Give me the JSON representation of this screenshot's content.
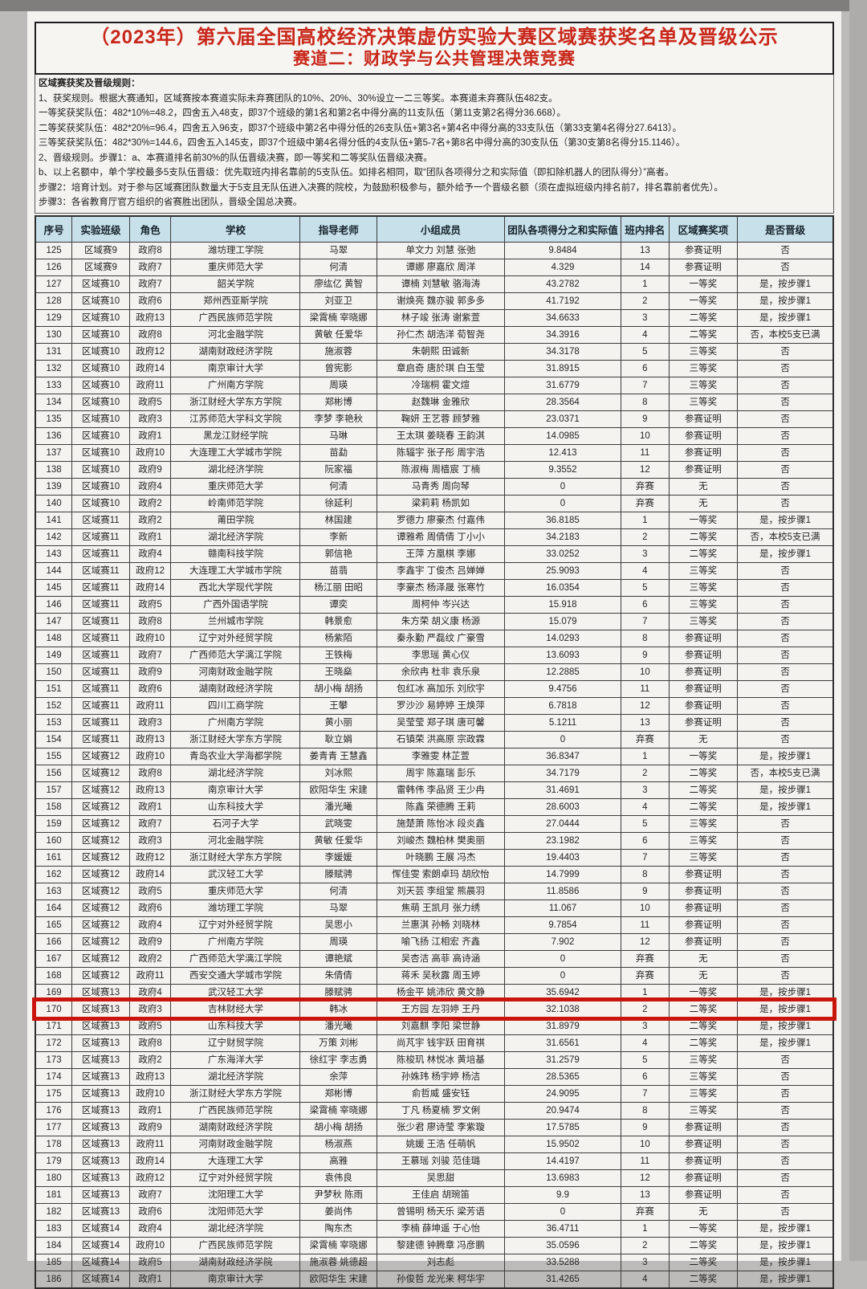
{
  "colors": {
    "title_red": "#c8271a",
    "header_bg": "#c7e0ea",
    "highlight_red": "#c9150c"
  },
  "title": {
    "line1": "（2023年）第六届全国高校经济决策虚仿实验大赛区域赛获奖名单及晋级公示",
    "line2": "赛道二：财政学与公共管理决策竞赛"
  },
  "rules": [
    "区域赛获奖及晋级规则：",
    "1、获奖规则。根据大赛通知，区域赛按本赛道实际未弃赛团队的10%、20%、30%设立一二三等奖。本赛道未弃赛队伍482支。",
    "一等奖获奖队伍：482*10%=48.2，四舍五入48支，即37个班级的第1名和第2名中得分高的11支队伍（第11支第2名得分36.668）。",
    "二等奖获奖队伍：482*20%=96.4，四舍五入96支，即37个班级中第2名中得分低的26支队伍+第3名+第4名中得分高的33支队伍（第33支第4名得分27.6413）。",
    "三等奖获奖队伍：482*30%=144.6，四舍五入145支，即37个班级中第4名得分低的4支队伍+第5-7名+第8名中得分高的30支队伍（第30支第8名得分15.1146）。",
    "2、晋级规则。步骤1：a、本赛道排名前30%的队伍晋级决赛，即一等奖和二等奖队伍晋级决赛。",
    "b、以上名额中，单个学校最多5支队伍晋级：优先取班内排名靠前的5支队伍。如排名相同，取“团队各项得分之和实际值（即扣除机器人的团队得分）”高者。",
    "步骤2：培育计划。对于参与区域赛团队数量大于5支且无队伍进入决赛的院校，为鼓励积极参与，额外给予一个晋级名额（须在虚拟班级内排名前7，排名靠前者优先）。",
    "步骤3：各省教育厅官方组织的省赛胜出团队，晋级全国总决赛。"
  ],
  "table": {
    "headers": [
      "序号",
      "实验班级",
      "角色",
      "学校",
      "指导老师",
      "小组成员",
      "团队各项得分之和实际值",
      "班内排名",
      "区域赛奖项",
      "是否晋级"
    ],
    "highlighted_seq": "170",
    "rows": [
      [
        "125",
        "区域赛9",
        "政府8",
        "潍坊理工学院",
        "马翠",
        "单文力 刘慧 张弛",
        "9.8484",
        "13",
        "参赛证明",
        "否"
      ],
      [
        "126",
        "区域赛9",
        "政府7",
        "重庆师范大学",
        "何清",
        "谭娜 廖嘉欣 周洋",
        "4.329",
        "14",
        "参赛证明",
        "否"
      ],
      [
        "127",
        "区域赛10",
        "政府7",
        "韶关学院",
        "廖纮亿 黄智",
        "谭楠 刘慧敏 骆海涛",
        "43.2782",
        "1",
        "一等奖",
        "是，按步骤1"
      ],
      [
        "128",
        "区域赛10",
        "政府6",
        "郑州西亚斯学院",
        "刘亚卫",
        "谢焕亮 魏亦骏 郭多多",
        "41.7192",
        "2",
        "一等奖",
        "是，按步骤1"
      ],
      [
        "129",
        "区域赛10",
        "政府13",
        "广西民族师范学院",
        "梁霄楠 宰晓娜",
        "林子竣 张涛 谢紫萱",
        "34.6633",
        "3",
        "二等奖",
        "是，按步骤1"
      ],
      [
        "130",
        "区域赛10",
        "政府8",
        "河北金融学院",
        "黄敏 任爱华",
        "孙仁杰 胡浩洋 荀智尧",
        "34.3916",
        "4",
        "二等奖",
        "否，本校5支已满"
      ],
      [
        "131",
        "区域赛10",
        "政府12",
        "湖南财政经济学院",
        "施淑蓉",
        "朱朝熙 田诚新",
        "34.3178",
        "5",
        "三等奖",
        "否"
      ],
      [
        "132",
        "区域赛10",
        "政府14",
        "南京审计大学",
        "曾宪影",
        "章启奇 唐於琪 白玉莹",
        "31.8915",
        "6",
        "三等奖",
        "否"
      ],
      [
        "133",
        "区域赛10",
        "政府11",
        "广州南方学院",
        "周瑛",
        "冷瑞桐 霍文煊",
        "31.6779",
        "7",
        "三等奖",
        "否"
      ],
      [
        "134",
        "区域赛10",
        "政府5",
        "浙江财经大学东方学院",
        "郑彬博",
        "赵魏琳 金雅欣",
        "28.3564",
        "8",
        "三等奖",
        "否"
      ],
      [
        "135",
        "区域赛10",
        "政府3",
        "江苏师范大学科文学院",
        "李梦 李艳秋",
        "鞠妍 王艺蓉 顾梦雅",
        "23.0371",
        "9",
        "参赛证明",
        "否"
      ],
      [
        "136",
        "区域赛10",
        "政府1",
        "黑龙江财经学院",
        "马琳",
        "王太琪 姜晓春 王韵淇",
        "14.0985",
        "10",
        "参赛证明",
        "否"
      ],
      [
        "137",
        "区域赛10",
        "政府10",
        "大连理工大学城市学院",
        "苗勐",
        "陈辐宇 张子彤 周宇浩",
        "12.413",
        "11",
        "参赛证明",
        "否"
      ],
      [
        "138",
        "区域赛10",
        "政府9",
        "湖北经济学院",
        "阮家福",
        "陈淑梅 周樯宸 丁楠",
        "9.3552",
        "12",
        "参赛证明",
        "否"
      ],
      [
        "139",
        "区域赛10",
        "政府4",
        "重庆师范大学",
        "何清",
        "马青秀 周向琴",
        "0",
        "弃赛",
        "无",
        "否"
      ],
      [
        "140",
        "区域赛10",
        "政府2",
        "岭南师范学院",
        "徐延利",
        "梁莉莉 杨凯如",
        "0",
        "弃赛",
        "无",
        "否"
      ],
      [
        "141",
        "区域赛11",
        "政府2",
        "莆田学院",
        "林国建",
        "罗德力 廖豪杰 付嘉伟",
        "36.8185",
        "1",
        "一等奖",
        "是，按步骤1"
      ],
      [
        "142",
        "区域赛11",
        "政府1",
        "湖北经济学院",
        "李新",
        "谭雅希 周倩倩 丁小小",
        "34.2183",
        "2",
        "二等奖",
        "否，本校5支已满"
      ],
      [
        "143",
        "区域赛11",
        "政府4",
        "赣南科技学院",
        "郭信艳",
        "王萍 方凰棋 李娜",
        "33.0252",
        "3",
        "二等奖",
        "是，按步骤1"
      ],
      [
        "144",
        "区域赛11",
        "政府12",
        "大连理工大学城市学院",
        "苗翡",
        "李鑫宇 丁俊杰 吕婵婵",
        "25.9093",
        "4",
        "三等奖",
        "否"
      ],
      [
        "145",
        "区域赛11",
        "政府14",
        "西北大学现代学院",
        "杨江丽 田昭",
        "李豪杰 杨泽晟 张寒竹",
        "16.0354",
        "5",
        "三等奖",
        "否"
      ],
      [
        "146",
        "区域赛11",
        "政府5",
        "广西外国语学院",
        "谭奕",
        "周柯仲 岑兴达",
        "15.918",
        "6",
        "三等奖",
        "否"
      ],
      [
        "147",
        "区域赛11",
        "政府8",
        "兰州城市学院",
        "韩景愈",
        "朱方荣 胡义康 杨源",
        "15.079",
        "7",
        "三等奖",
        "否"
      ],
      [
        "148",
        "区域赛11",
        "政府10",
        "辽宁对外经贸学院",
        "杨紫陌",
        "秦永勤 严磊纹 广豪雪",
        "14.0293",
        "8",
        "参赛证明",
        "否"
      ],
      [
        "149",
        "区域赛11",
        "政府7",
        "广西师范大学漓江学院",
        "王铁梅",
        "李思瑶 黄心仪",
        "13.6093",
        "9",
        "参赛证明",
        "否"
      ],
      [
        "150",
        "区域赛11",
        "政府9",
        "河南财政金融学院",
        "王晓燊",
        "余欣冉 杜非 袁乐泉",
        "12.2885",
        "10",
        "参赛证明",
        "否"
      ],
      [
        "151",
        "区域赛11",
        "政府6",
        "湖南财政经济学院",
        "胡小梅 胡扬",
        "包红冰 高加乐 刘欣宇",
        "9.4756",
        "11",
        "参赛证明",
        "否"
      ],
      [
        "152",
        "区域赛11",
        "政府11",
        "四川工商学院",
        "王攀",
        "罗沙沙 易婷婷 王焕萍",
        "6.7818",
        "12",
        "参赛证明",
        "否"
      ],
      [
        "153",
        "区域赛11",
        "政府3",
        "广州南方学院",
        "黄小丽",
        "吴莹莹 郑子琪 唐可馨",
        "5.1211",
        "13",
        "参赛证明",
        "否"
      ],
      [
        "154",
        "区域赛11",
        "政府13",
        "浙江财经大学东方学院",
        "耿立娟",
        "石镇荣 洪高原 宗政霖",
        "0",
        "弃赛",
        "无",
        "否"
      ],
      [
        "155",
        "区域赛12",
        "政府10",
        "青岛农业大学海都学院",
        "姜青青 王慧鑫",
        "李雅雯 林芷萱",
        "36.8347",
        "1",
        "一等奖",
        "是，按步骤1"
      ],
      [
        "156",
        "区域赛12",
        "政府8",
        "湖北经济学院",
        "刘冰熙",
        "周宇 陈嘉瑞 彭乐",
        "34.7179",
        "2",
        "二等奖",
        "否，本校5支已满"
      ],
      [
        "157",
        "区域赛12",
        "政府13",
        "南京审计大学",
        "欧阳华生 宋建",
        "雷韩伟 李品贤 王少冉",
        "31.4691",
        "3",
        "二等奖",
        "是，按步骤1"
      ],
      [
        "158",
        "区域赛12",
        "政府1",
        "山东科技大学",
        "潘光曦",
        "陈鑫 荣德腾 王莉",
        "28.6003",
        "4",
        "二等奖",
        "是，按步骤1"
      ],
      [
        "159",
        "区域赛12",
        "政府7",
        "石河子大学",
        "武晓雯",
        "施楚萧 陈怡冰 段炎鑫",
        "27.0444",
        "5",
        "三等奖",
        "否"
      ],
      [
        "160",
        "区域赛12",
        "政府3",
        "河北金融学院",
        "黄敏 任爱华",
        "刘峻杰 魏柏林 樊奥丽",
        "23.1982",
        "6",
        "三等奖",
        "否"
      ],
      [
        "161",
        "区域赛12",
        "政府12",
        "浙江财经大学东方学院",
        "李媛媛",
        "叶晓鹏 王展 冯杰",
        "19.4403",
        "7",
        "三等奖",
        "否"
      ],
      [
        "162",
        "区域赛12",
        "政府14",
        "武汉轻工大学",
        "滕赋骋",
        "恽佳雯 索朗卓玛 胡欣怡",
        "14.7999",
        "8",
        "参赛证明",
        "否"
      ],
      [
        "163",
        "区域赛12",
        "政府5",
        "重庆师范大学",
        "何清",
        "刘天芸 李组堂 熊晨羽",
        "11.8586",
        "9",
        "参赛证明",
        "否"
      ],
      [
        "164",
        "区域赛12",
        "政府6",
        "潍坊理工学院",
        "马翠",
        "焦萌 王凯月 张力绣",
        "11.067",
        "10",
        "参赛证明",
        "否"
      ],
      [
        "165",
        "区域赛12",
        "政府4",
        "辽宁对外经贸学院",
        "吴思小",
        "兰惠淇 孙畅 刘晓林",
        "9.7854",
        "11",
        "参赛证明",
        "否"
      ],
      [
        "166",
        "区域赛12",
        "政府9",
        "广州南方学院",
        "周瑛",
        "喻飞扬 江相宏 齐鑫",
        "7.902",
        "12",
        "参赛证明",
        "否"
      ],
      [
        "167",
        "区域赛12",
        "政府2",
        "广西师范大学漓江学院",
        "谭艳斌",
        "吴杏洁 高菲 高诗涵",
        "0",
        "弃赛",
        "无",
        "否"
      ],
      [
        "168",
        "区域赛12",
        "政府11",
        "西安交通大学城市学院",
        "朱倩倩",
        "蒋禾 吴秋露 周玉婷",
        "0",
        "弃赛",
        "无",
        "否"
      ],
      [
        "169",
        "区域赛13",
        "政府4",
        "武汉轻工大学",
        "滕赋骋",
        "杨金平 姚沛欣 黄文静",
        "35.6942",
        "1",
        "一等奖",
        "是，按步骤1"
      ],
      [
        "170",
        "区域赛13",
        "政府3",
        "吉林财经大学",
        "韩冰",
        "王方园 左羽婷 王丹",
        "32.1038",
        "2",
        "二等奖",
        "是，按步骤1"
      ],
      [
        "171",
        "区域赛13",
        "政府5",
        "山东科技大学",
        "潘光曦",
        "刘嘉麒 李阳 梁世静",
        "31.8979",
        "3",
        "二等奖",
        "是，按步骤1"
      ],
      [
        "172",
        "区域赛13",
        "政府8",
        "辽宁财贸学院",
        "万策 刘彬",
        "尚芃宇 钱宇跃 田育祺",
        "31.6561",
        "4",
        "二等奖",
        "是，按步骤1"
      ],
      [
        "173",
        "区域赛13",
        "政府2",
        "广东海洋大学",
        "徐红宇 李志勇",
        "陈梭玑 林悦冰 黄培基",
        "31.2579",
        "5",
        "三等奖",
        "否"
      ],
      [
        "174",
        "区域赛13",
        "政府13",
        "湖北经济学院",
        "余萍",
        "孙姝玮 杨宇婷 杨洁",
        "28.5365",
        "6",
        "三等奖",
        "否"
      ],
      [
        "175",
        "区域赛13",
        "政府10",
        "浙江财经大学东方学院",
        "郑彬博",
        "俞哲威 盛安钰",
        "24.9095",
        "7",
        "三等奖",
        "否"
      ],
      [
        "176",
        "区域赛13",
        "政府1",
        "广西民族师范学院",
        "梁霄楠 宰晓娜",
        "丁凡 杨夏楠 罗文俐",
        "20.9474",
        "8",
        "三等奖",
        "否"
      ],
      [
        "177",
        "区域赛13",
        "政府9",
        "湖南财政经济学院",
        "胡小梅 胡扬",
        "张少君 廖诗莹 李紫璇",
        "17.5785",
        "9",
        "参赛证明",
        "否"
      ],
      [
        "178",
        "区域赛13",
        "政府11",
        "河南财政金融学院",
        "杨淑燕",
        "姚媛 王浩 任萌帆",
        "15.9502",
        "10",
        "参赛证明",
        "否"
      ],
      [
        "179",
        "区域赛13",
        "政府14",
        "大连理工大学",
        "高雅",
        "王慕瑶 刘骏 范佳璐",
        "14.4197",
        "11",
        "参赛证明",
        "否"
      ],
      [
        "180",
        "区域赛13",
        "政府12",
        "辽宁对外经贸学院",
        "袁伟良",
        "吴思甜",
        "13.6983",
        "12",
        "参赛证明",
        "否"
      ],
      [
        "181",
        "区域赛13",
        "政府7",
        "沈阳理工大学",
        "尹梦秋 陈雨",
        "王佳启 胡琬笛",
        "9.9",
        "13",
        "参赛证明",
        "否"
      ],
      [
        "182",
        "区域赛13",
        "政府6",
        "沈阳师范大学",
        "姜尚伟",
        "曾锡明 杨天乐 梁芳语",
        "0",
        "弃赛",
        "无",
        "否"
      ],
      [
        "183",
        "区域赛14",
        "政府4",
        "湖北经济学院",
        "陶东杰",
        "李楠 薛坤遥 于心怡",
        "36.4711",
        "1",
        "一等奖",
        "是，按步骤1"
      ],
      [
        "184",
        "区域赛14",
        "政府10",
        "广西民族师范学院",
        "梁霄楠 宰晓娜",
        "黎建德 钟腾章 冯彦鹏",
        "35.0596",
        "2",
        "二等奖",
        "是，按步骤1"
      ],
      [
        "185",
        "区域赛14",
        "政府5",
        "湖南财政经济学院",
        "施淑蓉 姚德超",
        "刘志彪",
        "33.5288",
        "3",
        "二等奖",
        "是，按步骤1"
      ],
      [
        "186",
        "区域赛14",
        "政府1",
        "南京审计大学",
        "欧阳华生 宋建",
        "孙俊哲 龙光来 柯华宇",
        "31.4265",
        "4",
        "二等奖",
        "是，按步骤1"
      ]
    ]
  }
}
